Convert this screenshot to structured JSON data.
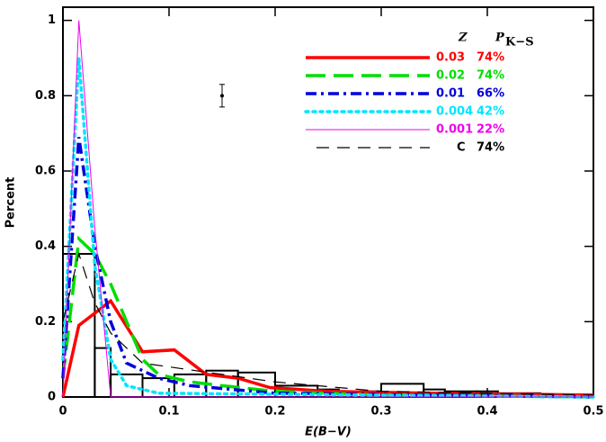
{
  "chart_data": {
    "type": "line",
    "x_label": "E(B−V)",
    "y_label": "Percent",
    "xlim": [
      0,
      0.5
    ],
    "ylim": [
      0,
      1.035
    ],
    "xticks": [
      0,
      0.1,
      0.2,
      0.3,
      0.4,
      0.5
    ],
    "yticks": [
      0,
      0.2,
      0.4,
      0.6,
      0.8,
      1
    ],
    "legend_header": {
      "z": "Z",
      "p": "P",
      "p_sub": "K−S"
    },
    "series": [
      {
        "name": "0.03",
        "p_ks": "74%",
        "color": "#ff0000",
        "style": "solid",
        "width": 3.5,
        "x": [
          0,
          0.015,
          0.045,
          0.075,
          0.105,
          0.135,
          0.165,
          0.195,
          0.25,
          0.35,
          0.5
        ],
        "values": [
          0,
          0.19,
          0.255,
          0.12,
          0.125,
          0.06,
          0.05,
          0.025,
          0.015,
          0.01,
          0.005
        ]
      },
      {
        "name": "0.02",
        "p_ks": "74%",
        "color": "#00dd00",
        "style": "dashed",
        "width": 3.5,
        "x": [
          0,
          0.015,
          0.03,
          0.045,
          0.06,
          0.075,
          0.09,
          0.12,
          0.15,
          0.2,
          0.3,
          0.5
        ],
        "values": [
          0.05,
          0.42,
          0.38,
          0.3,
          0.2,
          0.1,
          0.06,
          0.04,
          0.03,
          0.015,
          0.005,
          0
        ]
      },
      {
        "name": "0.01",
        "p_ks": "66%",
        "color": "#0000dd",
        "style": "dashdot",
        "width": 3.5,
        "x": [
          0,
          0.015,
          0.03,
          0.045,
          0.06,
          0.09,
          0.12,
          0.2,
          0.5
        ],
        "values": [
          0.05,
          0.69,
          0.4,
          0.2,
          0.09,
          0.05,
          0.03,
          0.01,
          0
        ]
      },
      {
        "name": "0.004",
        "p_ks": "42%",
        "color": "#00e5ff",
        "style": "dotted",
        "width": 3.5,
        "x": [
          0,
          0.015,
          0.03,
          0.045,
          0.06,
          0.09,
          0.5
        ],
        "values": [
          0.1,
          0.9,
          0.35,
          0.1,
          0.03,
          0.01,
          0
        ]
      },
      {
        "name": "0.001",
        "p_ks": "22%",
        "color": "#ee00ee",
        "style": "solid",
        "width": 1,
        "x": [
          0,
          0.015,
          0.03,
          0.045,
          0.5
        ],
        "values": [
          0,
          1,
          0.45,
          0,
          0
        ]
      },
      {
        "name": "C",
        "p_ks": "74%",
        "color": "#000000",
        "style": "longdash",
        "width": 1.2,
        "x": [
          0,
          0.015,
          0.03,
          0.045,
          0.075,
          0.1,
          0.15,
          0.2,
          0.3,
          0.5
        ],
        "values": [
          0.2,
          0.38,
          0.25,
          0.17,
          0.09,
          0.08,
          0.06,
          0.04,
          0.015,
          0.005
        ]
      }
    ],
    "histogram": {
      "color": "#000000",
      "bins": [
        0,
        0.03,
        0.045,
        0.075,
        0.105,
        0.135,
        0.165,
        0.2,
        0.24,
        0.26,
        0.3,
        0.34,
        0.36,
        0.39,
        0.41,
        0.45,
        0.48,
        0.5
      ],
      "counts": [
        0.38,
        0.13,
        0.06,
        0.05,
        0.06,
        0.07,
        0.065,
        0.03,
        0.02,
        0.015,
        0.035,
        0.02,
        0.015,
        0.015,
        0.01,
        0.005,
        0.005
      ]
    },
    "error_bar": {
      "x": 0.15,
      "y": 0.8,
      "error": 0.03
    }
  }
}
